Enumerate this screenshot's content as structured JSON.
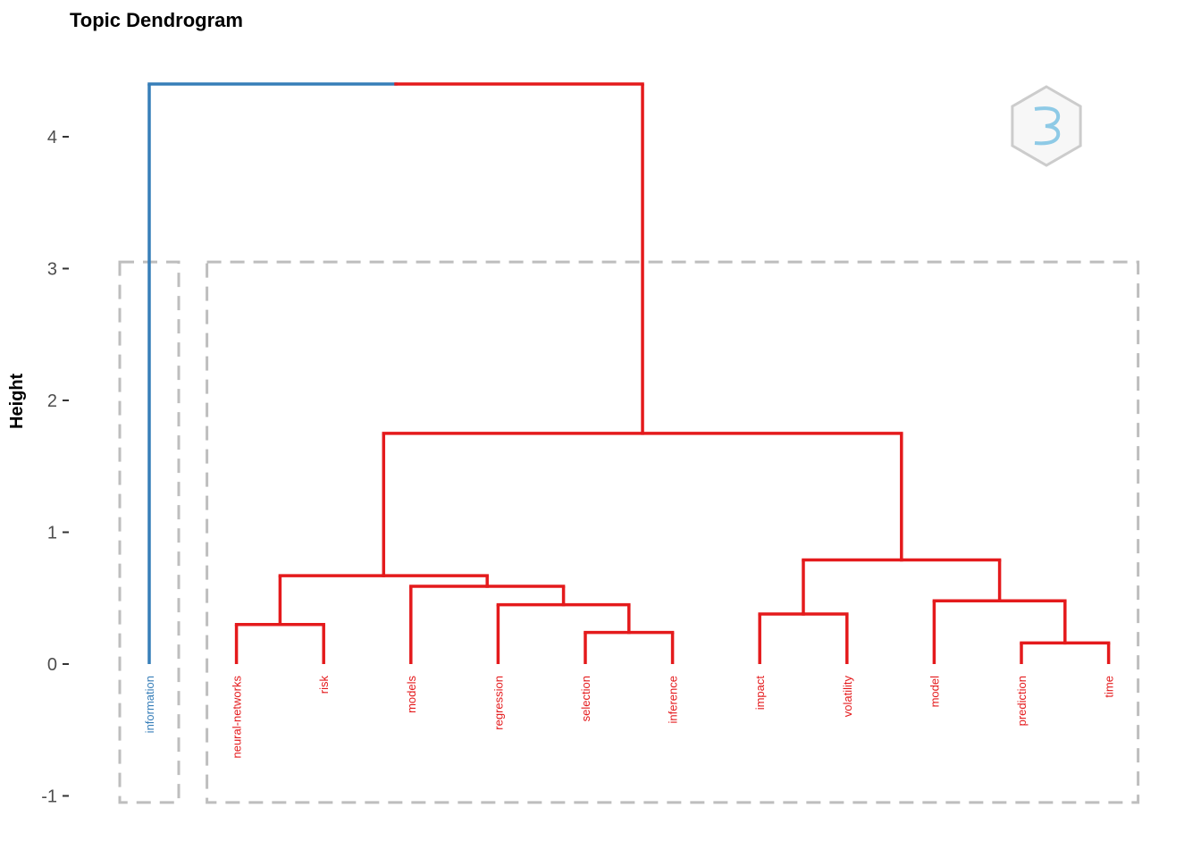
{
  "title": "Topic Dendrogram",
  "ylabel": "Height",
  "chart_data": {
    "type": "dendrogram",
    "title": "Topic Dendrogram",
    "ylabel": "Height",
    "ylim": [
      -1,
      4.4
    ],
    "yticks": [
      -1,
      0,
      1,
      2,
      3,
      4
    ],
    "leaves": [
      {
        "label": "information",
        "cluster": 1
      },
      {
        "label": "neural-networks",
        "cluster": 2
      },
      {
        "label": "risk",
        "cluster": 2
      },
      {
        "label": "models",
        "cluster": 2
      },
      {
        "label": "regression",
        "cluster": 2
      },
      {
        "label": "selection",
        "cluster": 2
      },
      {
        "label": "inference",
        "cluster": 2
      },
      {
        "label": "impact",
        "cluster": 2
      },
      {
        "label": "volatility",
        "cluster": 2
      },
      {
        "label": "model",
        "cluster": 2
      },
      {
        "label": "prediction",
        "cluster": 2
      },
      {
        "label": "time",
        "cluster": 2
      }
    ],
    "merges": [
      {
        "left": "L1",
        "right": "L2",
        "height": 0.3,
        "id": "m1"
      },
      {
        "left": "L5",
        "right": "L6",
        "height": 0.24,
        "id": "m2"
      },
      {
        "left": "L4",
        "right": "m2",
        "height": 0.45,
        "id": "m3"
      },
      {
        "left": "L3",
        "right": "m3",
        "height": 0.59,
        "id": "m4"
      },
      {
        "left": "m1",
        "right": "m4",
        "height": 0.67,
        "id": "m5"
      },
      {
        "left": "L7",
        "right": "L8",
        "height": 0.38,
        "id": "m6"
      },
      {
        "left": "L10",
        "right": "L11",
        "height": 0.16,
        "id": "m7"
      },
      {
        "left": "L9",
        "right": "m7",
        "height": 0.48,
        "id": "m8"
      },
      {
        "left": "m6",
        "right": "m8",
        "height": 0.79,
        "id": "m9"
      },
      {
        "left": "m5",
        "right": "m9",
        "height": 1.75,
        "id": "m10"
      },
      {
        "left": "L0",
        "right": "m10",
        "height": 4.4,
        "id": "m11"
      }
    ],
    "clusters": [
      {
        "id": 1,
        "color": "#377eb8"
      },
      {
        "id": 2,
        "color": "#e41a1c"
      }
    ],
    "rect_color": "#bebebe",
    "grid": false
  }
}
